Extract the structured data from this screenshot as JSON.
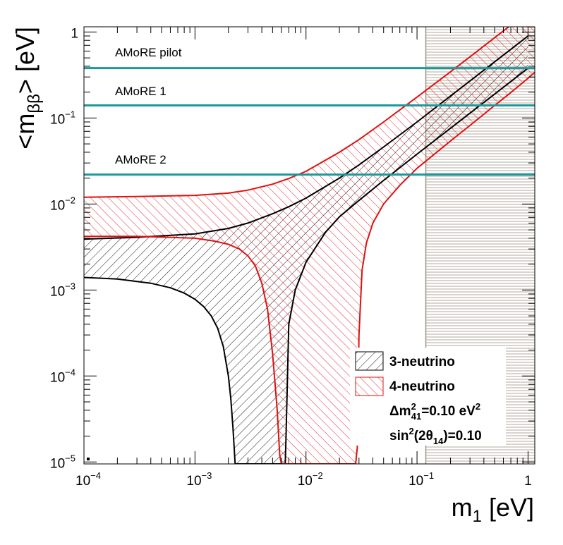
{
  "chart_data": {
    "type": "area",
    "title": "",
    "xlabel": "m",
    "xlabel_sub": "1",
    "xlabel_unit": " [eV]",
    "ylabel": "<m",
    "ylabel_sub": "ββ",
    "ylabel_unit": "> [eV]",
    "xscale": "log",
    "yscale": "log",
    "xlim": [
      0.0001,
      1.15
    ],
    "ylim": [
      9.5e-06,
      1.15
    ],
    "x_ticks": [
      {
        "base": "10",
        "exp": "−4",
        "value": 0.0001
      },
      {
        "base": "10",
        "exp": "−3",
        "value": 0.001
      },
      {
        "base": "10",
        "exp": "−2",
        "value": 0.01
      },
      {
        "base": "10",
        "exp": "−1",
        "value": 0.1
      },
      {
        "base": "1",
        "exp": "",
        "value": 1
      }
    ],
    "y_ticks": [
      {
        "base": "10",
        "exp": "−5",
        "value": 1e-05
      },
      {
        "base": "10",
        "exp": "−4",
        "value": 0.0001
      },
      {
        "base": "10",
        "exp": "−3",
        "value": 0.001
      },
      {
        "base": "10",
        "exp": "−2",
        "value": 0.01
      },
      {
        "base": "10",
        "exp": "−1",
        "value": 0.1
      },
      {
        "base": "1",
        "exp": "",
        "value": 1
      }
    ],
    "excluded_region": {
      "x_from": 0.12,
      "x_to": 1.15,
      "label": "hatched grey region"
    },
    "sensitivity_lines": [
      {
        "label": "AMoRE pilot",
        "y": 0.38,
        "color": "#1a9a9a"
      },
      {
        "label": "AMoRE 1",
        "y": 0.14,
        "color": "#1a9a9a"
      },
      {
        "label": "AMoRE 2",
        "y": 0.022,
        "color": "#1a9a9a"
      }
    ],
    "series": [
      {
        "name": "3-neutrino",
        "color": "#000000",
        "upper": {
          "x": [
            0.0001,
            0.0003,
            0.001,
            0.002,
            0.003,
            0.005,
            0.007,
            0.01,
            0.02,
            0.03,
            0.05,
            0.1,
            0.2,
            0.3,
            0.5,
            0.7,
            1.0
          ],
          "y": [
            0.0039,
            0.0041,
            0.0045,
            0.0052,
            0.006,
            0.0077,
            0.0093,
            0.0117,
            0.02,
            0.0285,
            0.046,
            0.09,
            0.18,
            0.27,
            0.45,
            0.63,
            0.9
          ]
        },
        "lower": {
          "x": [
            0.0001,
            0.0002,
            0.0004,
            0.0006,
            0.0008,
            0.001,
            0.0012,
            0.0014,
            0.0016,
            0.0018,
            0.002,
            0.0021,
            0.0022,
            0.0023,
            0.0024,
            0.0025,
            0.0026,
            0.0028,
            0.003,
            0.0035,
            0.004,
            0.0045,
            0.005,
            0.0055,
            0.006,
            0.0062,
            0.0064,
            0.0065,
            0.0066,
            0.007,
            0.008,
            0.01,
            0.015,
            0.02,
            0.03,
            0.05,
            0.1,
            0.2,
            0.3,
            0.5,
            0.7,
            1.0
          ],
          "y": [
            0.0014,
            0.00134,
            0.0012,
            0.00106,
            0.00092,
            0.00078,
            0.00064,
            0.0005,
            0.00036,
            0.00022,
            0.0001,
            5.5e-05,
            2.5e-05,
            9.5e-06,
            9.5e-06,
            9.5e-06,
            9.5e-06,
            9.5e-06,
            9.5e-06,
            9.5e-06,
            9.5e-06,
            9.5e-06,
            9.5e-06,
            9.5e-06,
            9.5e-06,
            9.5e-06,
            9.5e-06,
            9.5e-06,
            1.8e-05,
            0.0004,
            0.001,
            0.0021,
            0.0047,
            0.0071,
            0.011,
            0.0188,
            0.038,
            0.076,
            0.114,
            0.19,
            0.266,
            0.38
          ]
        }
      },
      {
        "name": "4-neutrino",
        "color": "#e01010",
        "upper": {
          "x": [
            0.0001,
            0.0003,
            0.001,
            0.002,
            0.003,
            0.005,
            0.007,
            0.01,
            0.02,
            0.03,
            0.05,
            0.1,
            0.2,
            0.3,
            0.5,
            0.7,
            1.0,
            1.15
          ],
          "y": [
            0.012,
            0.0122,
            0.0126,
            0.0134,
            0.0145,
            0.017,
            0.0198,
            0.024,
            0.04,
            0.056,
            0.09,
            0.175,
            0.345,
            0.515,
            0.86,
            1.2,
            1.15,
            1.15
          ]
        },
        "lower": {
          "x": [
            0.0001,
            0.0003,
            0.0006,
            0.001,
            0.0015,
            0.002,
            0.0025,
            0.003,
            0.0035,
            0.004,
            0.0045,
            0.005,
            0.0055,
            0.0058,
            0.006,
            0.0062,
            0.0064,
            0.0066,
            0.007,
            0.008,
            0.01,
            0.015,
            0.02,
            0.025,
            0.028,
            0.029,
            0.03,
            0.032,
            0.035,
            0.04,
            0.05,
            0.07,
            0.1,
            0.2,
            0.3,
            0.5,
            0.7,
            1.0,
            1.15
          ],
          "y": [
            0.0042,
            0.0042,
            0.0041,
            0.004,
            0.0037,
            0.0034,
            0.003,
            0.0025,
            0.0019,
            0.0012,
            0.0006,
            0.00018,
            4e-05,
            1.2e-05,
            9.5e-06,
            9.5e-06,
            9.5e-06,
            9.5e-06,
            9.5e-06,
            9.5e-06,
            9.5e-06,
            9.5e-06,
            9.5e-06,
            9.5e-06,
            9.5e-06,
            1.5e-05,
            0.0003,
            0.0017,
            0.0035,
            0.006,
            0.01,
            0.0165,
            0.026,
            0.054,
            0.082,
            0.14,
            0.198,
            0.29,
            0.34
          ]
        }
      }
    ],
    "legend": {
      "placement": "bottom-right",
      "entries": [
        {
          "label": "3-neutrino",
          "color": "#000000"
        },
        {
          "label": "4-neutrino",
          "color": "#e01010"
        }
      ],
      "param1": {
        "prefix": "Δm",
        "sup": "2",
        "sub": "41",
        "value": "=0.10 eV",
        "value_sup": "2"
      },
      "param2": {
        "prefix": "sin",
        "sup": "2",
        "mid": "(2θ",
        "sub": "14",
        "value": ")=0.10"
      }
    }
  }
}
